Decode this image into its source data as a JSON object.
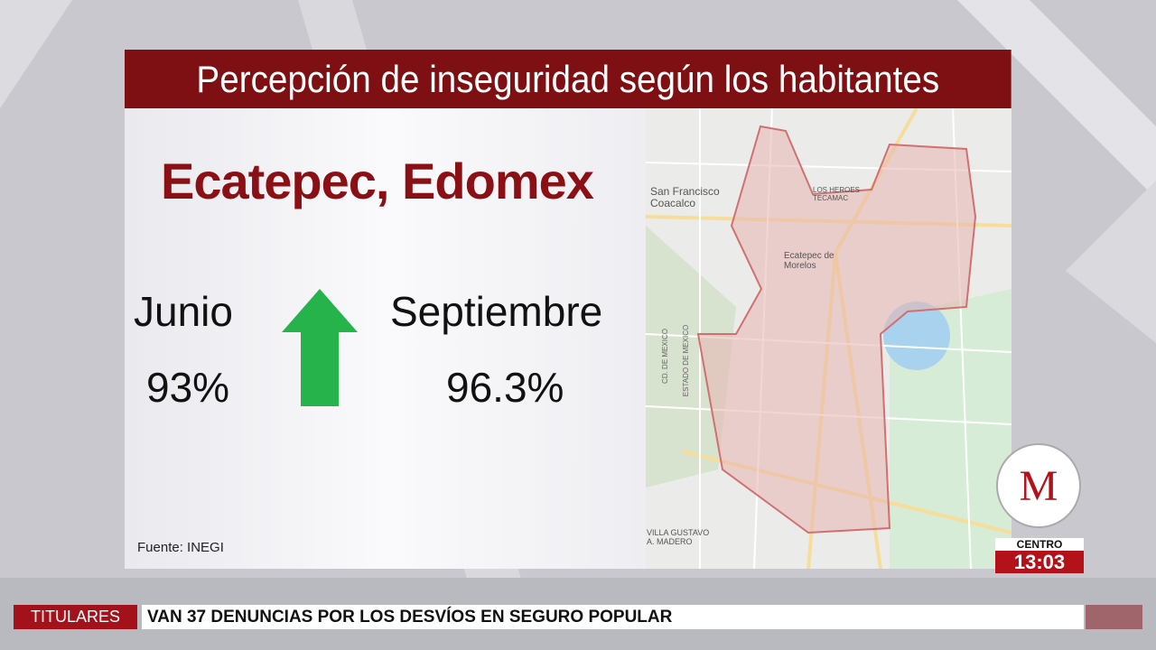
{
  "header": {
    "title": "Percepción de inseguridad según los habitantes"
  },
  "content": {
    "place": "Ecatepec, Edomex",
    "before": {
      "label": "Junio",
      "value": "93%"
    },
    "after": {
      "label": "Septiembre",
      "value": "96.3%"
    },
    "source": "Fuente: INEGI"
  },
  "map": {
    "labels": [
      "San Francisco Coacalco",
      "LOS HEROES TECAMAC",
      "Ecatepec de Morelos",
      "CD. DE MEXICO",
      "ESTADO DE MEXICO",
      "VILLA GUSTAVO A. MADERO"
    ]
  },
  "broadcast": {
    "logo": "M",
    "region": "CENTRO",
    "time": "13:03"
  },
  "ticker": {
    "label": "TITULARES",
    "text": "VAN 37 DENUNCIAS POR LOS DESVÍOS EN SEGURO POPULAR"
  }
}
